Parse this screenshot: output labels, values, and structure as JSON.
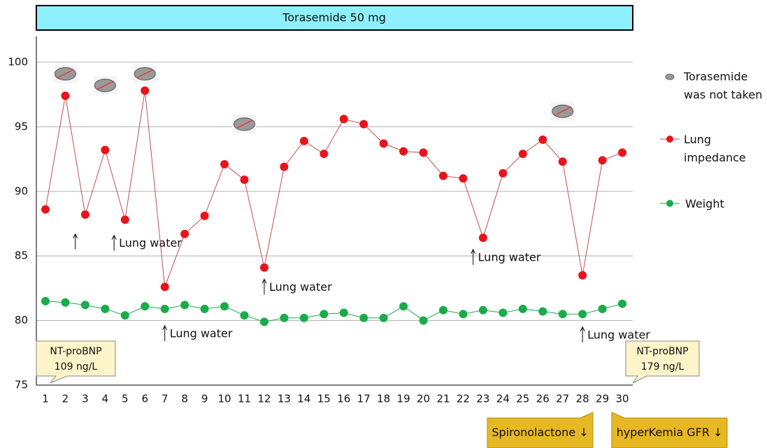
{
  "chart_data": {
    "type": "line",
    "title": "Torasemide 50 mg",
    "categories": [
      "1",
      "2",
      "3",
      "4",
      "5",
      "6",
      "7",
      "8",
      "9",
      "10",
      "11",
      "12",
      "13",
      "14",
      "15",
      "16",
      "17",
      "18",
      "19",
      "20",
      "21",
      "22",
      "23",
      "24",
      "25",
      "26",
      "27",
      "28",
      "29",
      "30"
    ],
    "series": [
      {
        "name": "Lung impedance",
        "color": "#e8141c",
        "line_color": "#c0504d",
        "values": [
          88.6,
          97.4,
          88.2,
          93.2,
          87.8,
          97.8,
          82.6,
          86.7,
          88.1,
          92.1,
          90.9,
          84.1,
          91.9,
          93.9,
          92.9,
          95.6,
          95.2,
          93.7,
          93.1,
          93.0,
          91.2,
          91.0,
          86.4,
          91.4,
          92.9,
          94.0,
          92.3,
          83.5,
          92.4,
          93.0
        ]
      },
      {
        "name": "Weight",
        "color": "#1aab4a",
        "line_color": "#1aab4a",
        "values": [
          81.5,
          81.4,
          81.2,
          80.9,
          80.4,
          81.1,
          80.9,
          81.2,
          80.9,
          81.1,
          80.4,
          79.9,
          80.2,
          80.2,
          80.5,
          80.6,
          80.2,
          80.2,
          81.1,
          80.0,
          80.8,
          80.5,
          80.8,
          80.6,
          80.9,
          80.7,
          80.5,
          80.5,
          80.9,
          81.3
        ]
      }
    ],
    "not_taken": {
      "name": "Torasemide was not taken",
      "points": [
        {
          "x": 2,
          "y": 99.1
        },
        {
          "x": 4,
          "y": 98.2
        },
        {
          "x": 6,
          "y": 99.1
        },
        {
          "x": 11,
          "y": 95.2
        },
        {
          "x": 27,
          "y": 96.2
        }
      ]
    },
    "annotations": [
      {
        "x": 2.5,
        "y": 86.1
      },
      {
        "x": 4.45,
        "y": 86.0,
        "text": "Lung water"
      },
      {
        "x": 7,
        "y": 79.0,
        "text": "Lung water"
      },
      {
        "x": 12,
        "y": 82.6,
        "text": "Lung water"
      },
      {
        "x": 22.5,
        "y": 84.9,
        "text": "Lung water"
      },
      {
        "x": 28,
        "y": 78.9,
        "text": "Lung water"
      }
    ],
    "callouts": [
      {
        "lines": [
          "NT-proBNP",
          "109 ng/L"
        ]
      },
      {
        "lines": [
          "NT-proBNP",
          "179 ng/L"
        ]
      }
    ],
    "notes": [
      "Spironolactone ↓",
      "hyperKemia GFR ↓"
    ],
    "ylim": [
      75,
      102
    ],
    "yticks": [
      75,
      80,
      85,
      90,
      95,
      100
    ],
    "grid": true
  }
}
